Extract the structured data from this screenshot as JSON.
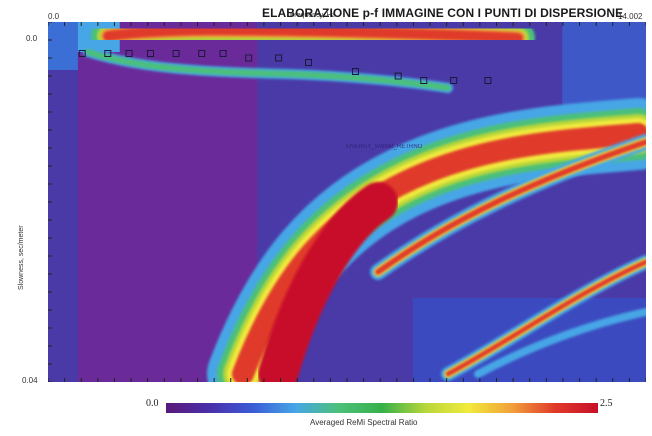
{
  "title": "ELABORAZIONE p-f IMMAGINE CON I PUNTI DI DISPERSIONE",
  "chart_data": {
    "type": "heatmap",
    "xlabel": "Frequency, Hz",
    "ylabel": "Slowness, sec/meter",
    "xlim": [
      0.0,
      14.002
    ],
    "ylim": [
      0.0,
      0.04
    ],
    "x_tick_labels": [
      "0.0",
      "14.002"
    ],
    "y_tick_labels": [
      "0.0",
      "0.04"
    ],
    "colorbar": {
      "label": "Averaged ReMi Spectral Ratio",
      "min_label": "0.0",
      "max_label": "2.5",
      "range": [
        0.0,
        2.5
      ],
      "colors": [
        "#5a1a7a",
        "#4a2fa8",
        "#3b5bd6",
        "#46a6e6",
        "#4cc07a",
        "#36b04a",
        "#b6d63a",
        "#f2ea3c",
        "#f2a03a",
        "#e03a2a",
        "#c8102a"
      ]
    },
    "dispersion_picks_label": "ENERGY_SWNM_RETRNO",
    "dispersion_picks": [
      {
        "x": 0.8,
        "y": 0.0035
      },
      {
        "x": 1.4,
        "y": 0.0035
      },
      {
        "x": 1.9,
        "y": 0.0035
      },
      {
        "x": 2.4,
        "y": 0.0035
      },
      {
        "x": 3.0,
        "y": 0.0035
      },
      {
        "x": 3.6,
        "y": 0.0035
      },
      {
        "x": 4.1,
        "y": 0.0035
      },
      {
        "x": 4.7,
        "y": 0.004
      },
      {
        "x": 5.4,
        "y": 0.004
      },
      {
        "x": 6.1,
        "y": 0.0045
      },
      {
        "x": 7.2,
        "y": 0.0055
      },
      {
        "x": 8.2,
        "y": 0.006
      },
      {
        "x": 8.8,
        "y": 0.0065
      },
      {
        "x": 9.5,
        "y": 0.0065
      },
      {
        "x": 10.3,
        "y": 0.0065
      }
    ]
  }
}
